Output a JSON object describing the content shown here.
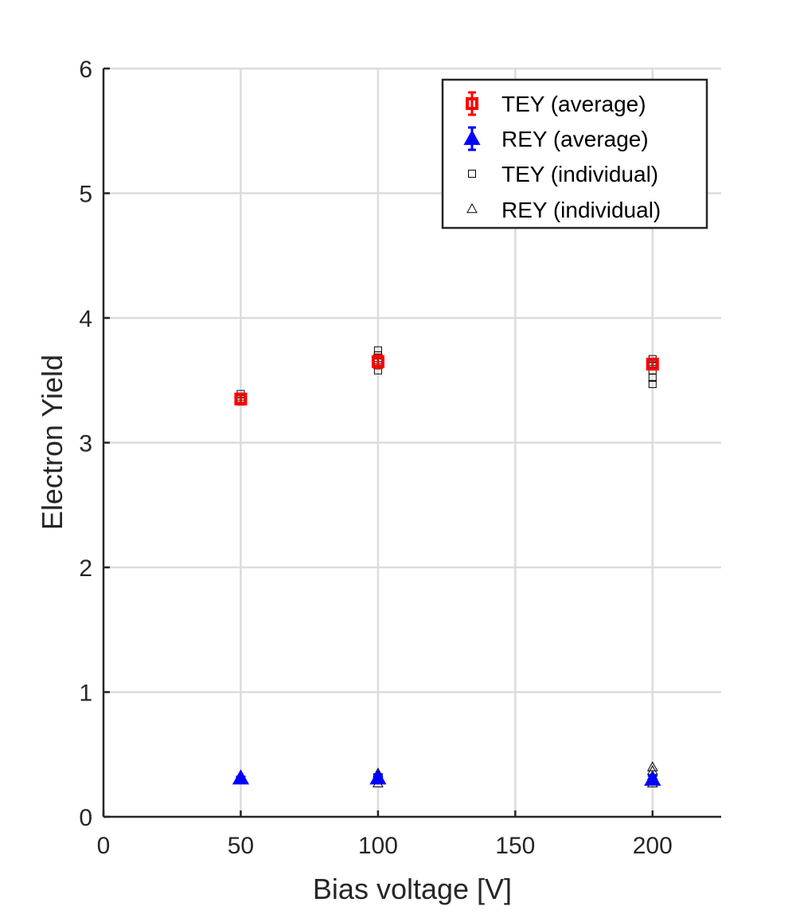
{
  "chart_data": {
    "type": "scatter",
    "title": "",
    "xlabel": "Bias voltage [V]",
    "ylabel": "Electron Yield",
    "xlim": [
      0,
      225
    ],
    "ylim": [
      0,
      6
    ],
    "x_ticks": [
      0,
      50,
      100,
      150,
      200
    ],
    "y_ticks": [
      0,
      1,
      2,
      3,
      4,
      5,
      6
    ],
    "x_tick_labels": [
      "0",
      "50",
      "100",
      "150",
      "200"
    ],
    "y_tick_labels": [
      "0",
      "1",
      "2",
      "3",
      "4",
      "5",
      "6"
    ],
    "grid": true,
    "legend_position": "top-right",
    "series": [
      {
        "name": "TEY (average)",
        "marker": "square",
        "color": "#ff0000",
        "errorbars": true,
        "points": [
          {
            "x": 50,
            "y": 3.35,
            "err": 0.03
          },
          {
            "x": 100,
            "y": 3.65,
            "err": 0.05
          },
          {
            "x": 200,
            "y": 3.63,
            "err": 0.04
          }
        ]
      },
      {
        "name": "REY (average)",
        "marker": "triangle",
        "color": "#0000ff",
        "errorbars": true,
        "points": [
          {
            "x": 50,
            "y": 0.31,
            "err": 0.01
          },
          {
            "x": 100,
            "y": 0.31,
            "err": 0.03
          },
          {
            "x": 200,
            "y": 0.3,
            "err": 0.03
          }
        ]
      },
      {
        "name": "TEY (individual)",
        "marker": "square-open",
        "color": "#000000",
        "errorbars": false,
        "points": [
          {
            "x": 50,
            "y": 3.33
          },
          {
            "x": 50,
            "y": 3.35
          },
          {
            "x": 50,
            "y": 3.37
          },
          {
            "x": 50,
            "y": 3.39
          },
          {
            "x": 100,
            "y": 3.58
          },
          {
            "x": 100,
            "y": 3.62
          },
          {
            "x": 100,
            "y": 3.66
          },
          {
            "x": 100,
            "y": 3.7
          },
          {
            "x": 100,
            "y": 3.74
          },
          {
            "x": 200,
            "y": 3.47
          },
          {
            "x": 200,
            "y": 3.52
          },
          {
            "x": 200,
            "y": 3.58
          },
          {
            "x": 200,
            "y": 3.62
          },
          {
            "x": 200,
            "y": 3.65
          },
          {
            "x": 200,
            "y": 3.67
          }
        ]
      },
      {
        "name": "REY (individual)",
        "marker": "triangle-open",
        "color": "#000000",
        "errorbars": false,
        "points": [
          {
            "x": 50,
            "y": 0.31
          },
          {
            "x": 50,
            "y": 0.32
          },
          {
            "x": 100,
            "y": 0.27
          },
          {
            "x": 100,
            "y": 0.3
          },
          {
            "x": 100,
            "y": 0.33
          },
          {
            "x": 100,
            "y": 0.35
          },
          {
            "x": 200,
            "y": 0.27
          },
          {
            "x": 200,
            "y": 0.3
          },
          {
            "x": 200,
            "y": 0.33
          },
          {
            "x": 200,
            "y": 0.37
          },
          {
            "x": 200,
            "y": 0.4
          }
        ]
      }
    ]
  }
}
